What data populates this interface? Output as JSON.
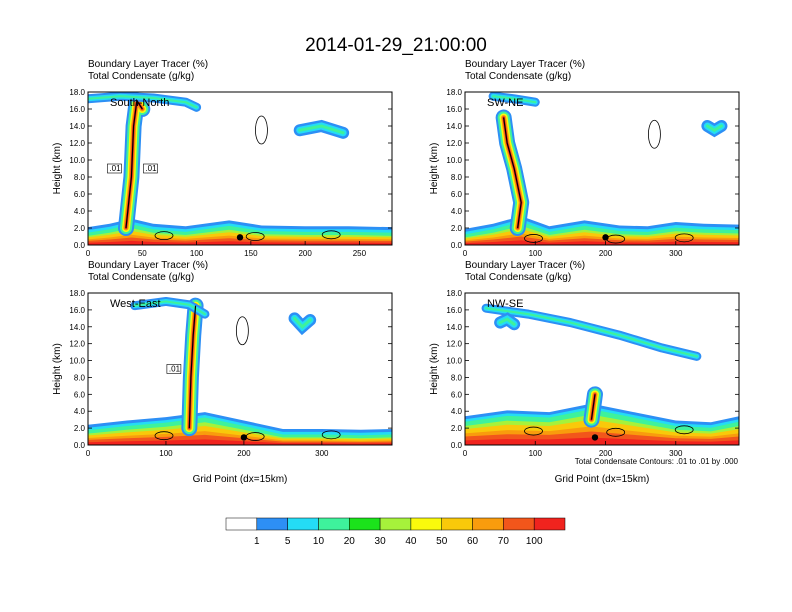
{
  "figure": {
    "title": "2014-01-29_21:00:00",
    "shaded_title": "Boundary Layer Tracer",
    "shaded_units": "(%)",
    "contour_title": "Total Condensate",
    "contour_units": "(g/kg)",
    "ylabel": "Height (km)",
    "xlabel": "Grid Point (dx=15km)",
    "contour_note": "Total Condensate Contours: .01 to .01 by .000",
    "contour_label": ".01"
  },
  "colors": {
    "levels": [
      "#ffffff",
      "#2d8ff5",
      "#24dcf5",
      "#3ef29c",
      "#1be31b",
      "#a6f23b",
      "#fafa0c",
      "#f9c90a",
      "#f99c0d",
      "#f2561b",
      "#f0231e"
    ],
    "contour": "#000000"
  },
  "chart_data": [
    {
      "type": "heatmap",
      "panel_label": "South-North",
      "x_ticks": [
        0,
        50,
        100,
        150,
        200,
        250
      ],
      "xlim": [
        0,
        280
      ],
      "y_ticks": [
        "0.0",
        "2.0",
        "4.0",
        "6.0",
        "8.0",
        "10.0",
        "12.0",
        "14.0",
        "16.0",
        "18.0"
      ],
      "ylim": [
        0,
        18
      ],
      "marker_x": 140,
      "contour_labels_shown": 2,
      "series": [
        {
          "name": "surface",
          "points": [
            [
              0,
              1.2
            ],
            [
              20,
              1.6
            ],
            [
              40,
              2.2
            ],
            [
              60,
              1.6
            ],
            [
              90,
              1.3
            ],
            [
              130,
              2.0
            ],
            [
              160,
              1.4
            ],
            [
              200,
              1.3
            ],
            [
              240,
              1.3
            ],
            [
              280,
              1.2
            ]
          ]
        },
        {
          "name": "plume",
          "points": [
            [
              35,
              2
            ],
            [
              40,
              8
            ],
            [
              42,
              14
            ],
            [
              45,
              17
            ],
            [
              50,
              16
            ]
          ]
        },
        {
          "name": "anvil",
          "points": [
            [
              0,
              17.2
            ],
            [
              30,
              17.5
            ],
            [
              60,
              17.3
            ],
            [
              90,
              16.8
            ],
            [
              100,
              16.2
            ]
          ]
        },
        {
          "name": "upper-cloud",
          "points": [
            [
              195,
              13.5
            ],
            [
              215,
              14
            ],
            [
              235,
              13.2
            ]
          ]
        }
      ]
    },
    {
      "type": "heatmap",
      "panel_label": "SW-NE",
      "x_ticks": [
        0,
        100,
        200,
        300
      ],
      "xlim": [
        0,
        390
      ],
      "y_ticks": [
        "0.0",
        "2.0",
        "4.0",
        "6.0",
        "8.0",
        "10.0",
        "12.0",
        "14.0",
        "16.0",
        "18.0"
      ],
      "ylim": [
        0,
        18
      ],
      "marker_x": 200,
      "series": [
        {
          "name": "surface",
          "points": [
            [
              0,
              1.0
            ],
            [
              40,
              1.6
            ],
            [
              80,
              2.5
            ],
            [
              120,
              1.3
            ],
            [
              170,
              2.0
            ],
            [
              220,
              1.4
            ],
            [
              260,
              1.3
            ],
            [
              300,
              1.8
            ],
            [
              340,
              1.6
            ],
            [
              390,
              1.5
            ]
          ]
        },
        {
          "name": "plume",
          "points": [
            [
              75,
              2
            ],
            [
              80,
              5
            ],
            [
              70,
              9
            ],
            [
              60,
              12
            ],
            [
              55,
              15
            ]
          ]
        },
        {
          "name": "anvil",
          "points": [
            [
              40,
              17.5
            ],
            [
              70,
              17.2
            ],
            [
              100,
              16.8
            ]
          ]
        },
        {
          "name": "upper-cloud",
          "points": [
            [
              345,
              14
            ],
            [
              355,
              13.5
            ],
            [
              365,
              14
            ]
          ]
        }
      ]
    },
    {
      "type": "heatmap",
      "panel_label": "West-East",
      "x_ticks": [
        0,
        100,
        200,
        300
      ],
      "xlim": [
        0,
        390
      ],
      "y_ticks": [
        "0.0",
        "2.0",
        "4.0",
        "6.0",
        "8.0",
        "10.0",
        "12.0",
        "14.0",
        "16.0",
        "18.0"
      ],
      "ylim": [
        0,
        18
      ],
      "marker_x": 200,
      "contour_labels_shown": 1,
      "series": [
        {
          "name": "surface",
          "points": [
            [
              0,
              1.5
            ],
            [
              50,
              2.0
            ],
            [
              100,
              2.4
            ],
            [
              150,
              3.0
            ],
            [
              200,
              2.0
            ],
            [
              250,
              1.0
            ],
            [
              300,
              1.0
            ],
            [
              350,
              0.9
            ],
            [
              390,
              1.0
            ]
          ]
        },
        {
          "name": "plume",
          "points": [
            [
              130,
              2
            ],
            [
              132,
              8
            ],
            [
              135,
              13
            ],
            [
              138,
              16.5
            ]
          ]
        },
        {
          "name": "anvil",
          "points": [
            [
              60,
              16.5
            ],
            [
              100,
              17
            ],
            [
              130,
              16.6
            ],
            [
              150,
              15.5
            ]
          ]
        },
        {
          "name": "upper-cloud",
          "points": [
            [
              265,
              15
            ],
            [
              275,
              14
            ],
            [
              285,
              14.8
            ]
          ]
        }
      ]
    },
    {
      "type": "heatmap",
      "panel_label": "NW-SE",
      "x_ticks": [
        0,
        100,
        200,
        300
      ],
      "xlim": [
        0,
        390
      ],
      "y_ticks": [
        "0.0",
        "2.0",
        "4.0",
        "6.0",
        "8.0",
        "10.0",
        "12.0",
        "14.0",
        "16.0",
        "18.0"
      ],
      "ylim": [
        0,
        18
      ],
      "marker_x": 185,
      "series": [
        {
          "name": "surface",
          "points": [
            [
              0,
              2.5
            ],
            [
              60,
              3.2
            ],
            [
              120,
              3.0
            ],
            [
              180,
              4.0
            ],
            [
              240,
              3.0
            ],
            [
              300,
              2.0
            ],
            [
              350,
              1.8
            ],
            [
              390,
              2.5
            ]
          ]
        },
        {
          "name": "plume",
          "points": [
            [
              180,
              3
            ],
            [
              185,
              6
            ]
          ]
        },
        {
          "name": "anvil",
          "points": [
            [
              30,
              16.2
            ],
            [
              90,
              15.5
            ],
            [
              150,
              14.5
            ],
            [
              220,
              13.0
            ],
            [
              280,
              11.5
            ],
            [
              330,
              10.5
            ]
          ]
        },
        {
          "name": "upper-cloud",
          "points": [
            [
              50,
              14.5
            ],
            [
              60,
              14.9
            ],
            [
              70,
              14.3
            ]
          ]
        }
      ]
    }
  ],
  "colorbar": {
    "labels": [
      "1",
      "5",
      "10",
      "20",
      "30",
      "40",
      "50",
      "60",
      "70",
      "100"
    ]
  }
}
